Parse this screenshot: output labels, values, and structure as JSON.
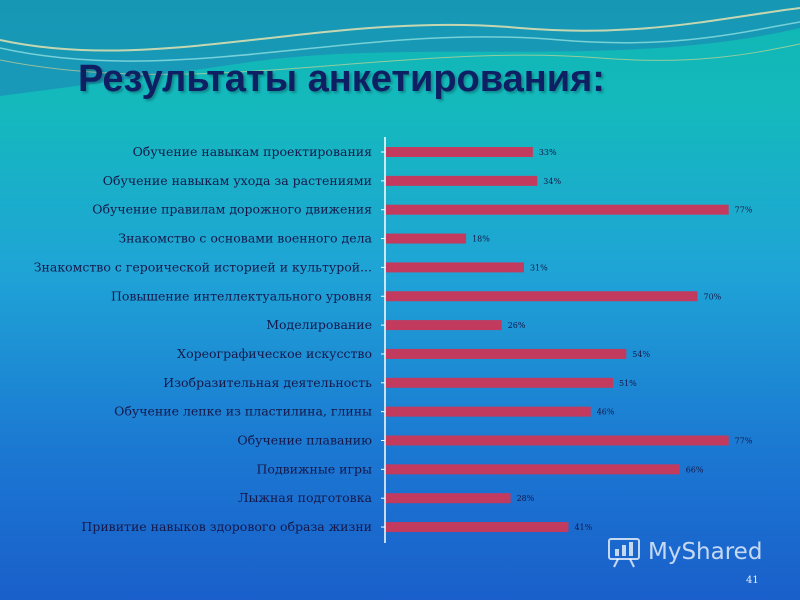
{
  "title": "Результаты анкетирования:",
  "page_number": "41",
  "watermark_text": "MyShared",
  "colors": {
    "bar": "#c23a5e",
    "axis": "#ffffff",
    "title": "#0f1f63"
  },
  "chart_data": {
    "type": "bar",
    "orientation": "horizontal",
    "title": "Результаты анкетирования:",
    "xlabel": "",
    "ylabel": "",
    "xlim": [
      0,
      77
    ],
    "grid": false,
    "categories": [
      "Обучение навыкам проектирования",
      "Обучение навыкам ухода за растениями",
      "Обучение правилам дорожного движения",
      "Знакомство с основами военного дела",
      "Знакомство с героической историей и культурой...",
      "Повышение интеллектуального уровня",
      "Моделирование",
      "Хореографическое искусство",
      "Изобразительная деятельность",
      "Обучение лепке из пластилина, глины",
      "Обучение плаванию",
      "Подвижные игры",
      "Лыжная подготовка",
      "Привитие навыков здорового образа жизни"
    ],
    "values": [
      33,
      34,
      77,
      18,
      31,
      70,
      26,
      54,
      51,
      46,
      77,
      66,
      28,
      41
    ],
    "value_labels": [
      "33%",
      "34%",
      "77%",
      "18%",
      "31%",
      "70%",
      "26%",
      "54%",
      "51%",
      "46%",
      "77%",
      "66%",
      "28%",
      "41%"
    ]
  }
}
